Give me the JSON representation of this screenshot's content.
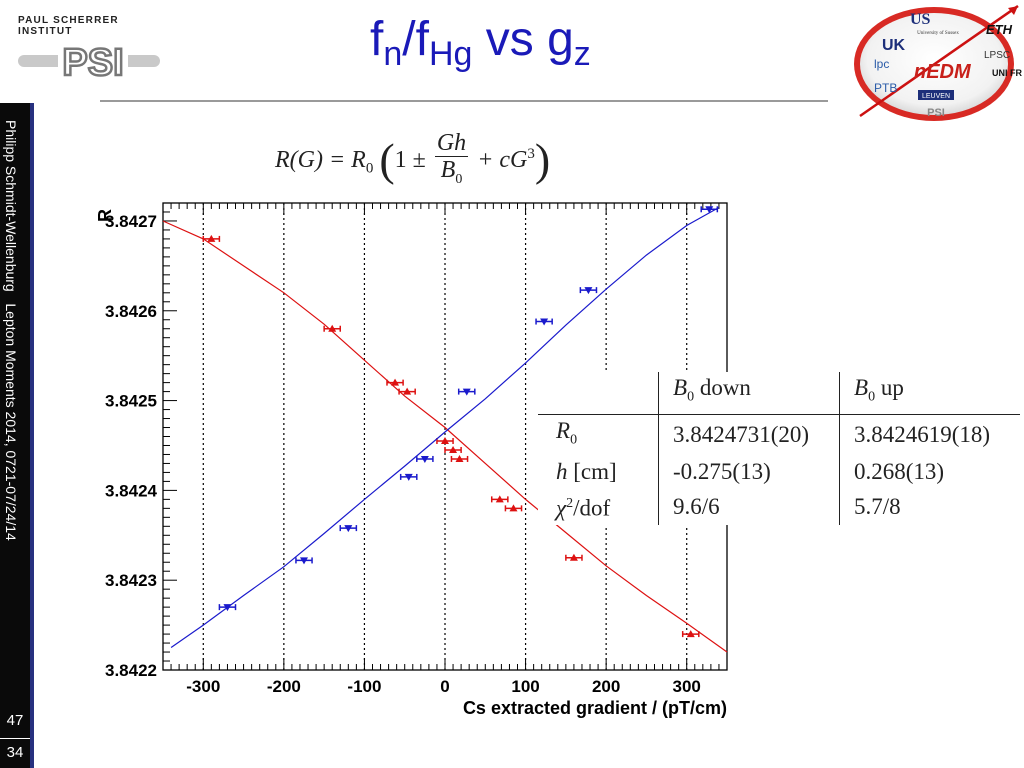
{
  "header": {
    "institute": "PAUL SCHERRER INSTITUT",
    "institute_logo": "PSI",
    "title_main": "f",
    "title_sub1": "n",
    "title_slash": "/f",
    "title_sub2": "Hg",
    "title_rest": " vs g",
    "title_sub3": "z"
  },
  "collab_logo": {
    "labels": [
      "US",
      "ETH",
      "UK",
      "LPSC",
      "lpc",
      "nEDM",
      "UNI FR",
      "PTB",
      "LEUVEN",
      "PSI",
      "University of Sussex"
    ],
    "brand_color": "#d0241c"
  },
  "sidebar": {
    "footer": "Philipp Schmidt-Wellenburg   Lepton Moments 2014, 0721-07/24/14",
    "page_top": "47",
    "page_bottom": "34"
  },
  "formula": {
    "lhs": "R(G) = R",
    "sub0": "0",
    "one_pm": "1 ±",
    "num": "Gh",
    "den": "B",
    "den_sub": "0",
    "plus": "+ cG",
    "cube": "3"
  },
  "results_table": {
    "headers": [
      "",
      "B0 down",
      "B0 up"
    ],
    "rows": [
      [
        "R0",
        "3.8424731(20)",
        "3.8424619(18)"
      ],
      [
        "h [cm]",
        "-0.275(13)",
        "0.268(13)"
      ],
      [
        "χ2/dof",
        "9.6/6",
        "5.7/8"
      ]
    ]
  },
  "chart_data": {
    "type": "scatter",
    "xlabel": "Cs extracted gradient / (pT/cm)",
    "ylabel": "R",
    "xlim": [
      -350,
      350
    ],
    "ylim": [
      3.8422,
      3.84272
    ],
    "x_ticks": [
      "-300",
      "-200",
      "-100",
      "0",
      "100",
      "200",
      "300"
    ],
    "y_ticks": [
      "3.8422",
      "3.8423",
      "3.8424",
      "3.8425",
      "3.8426",
      "3.8427"
    ],
    "vertical_dotted_lines_at": [
      -300,
      -200,
      -100,
      0,
      100,
      200,
      300
    ],
    "series": [
      {
        "color": "#dd1111",
        "marker": "triangle-up",
        "x": [
          -290,
          -140,
          -62,
          -47,
          0,
          10,
          18,
          68,
          85,
          160,
          305
        ],
        "y": [
          3.84268,
          3.84258,
          3.84252,
          3.84251,
          3.842455,
          3.842445,
          3.842435,
          3.84239,
          3.84238,
          3.842325,
          3.84224
        ],
        "xerr": [
          10,
          10,
          10,
          10,
          10,
          10,
          10,
          10,
          10,
          10,
          10
        ],
        "fit": [
          [
            -350,
            3.8427
          ],
          [
            -300,
            3.84268
          ],
          [
            -250,
            3.84265
          ],
          [
            -200,
            3.84262
          ],
          [
            -150,
            3.842585
          ],
          [
            -100,
            3.842545
          ],
          [
            -50,
            3.842505
          ],
          [
            0,
            3.84247
          ],
          [
            50,
            3.84243
          ],
          [
            100,
            3.84239
          ],
          [
            150,
            3.842353
          ],
          [
            200,
            3.842316
          ],
          [
            250,
            3.842283
          ],
          [
            300,
            3.842252
          ],
          [
            350,
            3.84222
          ]
        ]
      },
      {
        "color": "#1a1acc",
        "marker": "triangle-down",
        "x": [
          -270,
          -175,
          -120,
          -45,
          -25,
          27,
          123,
          178,
          328
        ],
        "y": [
          3.84227,
          3.842322,
          3.842358,
          3.842415,
          3.842435,
          3.84251,
          3.842588,
          3.842623,
          3.842713
        ],
        "xerr": [
          10,
          10,
          10,
          10,
          10,
          10,
          10,
          10,
          10
        ],
        "fit": [
          [
            -340,
            3.842225
          ],
          [
            -300,
            3.84225
          ],
          [
            -250,
            3.842283
          ],
          [
            -200,
            3.842315
          ],
          [
            -150,
            3.842352
          ],
          [
            -100,
            3.84239
          ],
          [
            -50,
            3.842427
          ],
          [
            0,
            3.842465
          ],
          [
            50,
            3.842502
          ],
          [
            100,
            3.842542
          ],
          [
            150,
            3.842584
          ],
          [
            200,
            3.842624
          ],
          [
            250,
            3.842662
          ],
          [
            300,
            3.842695
          ],
          [
            340,
            3.842715
          ]
        ]
      }
    ]
  }
}
